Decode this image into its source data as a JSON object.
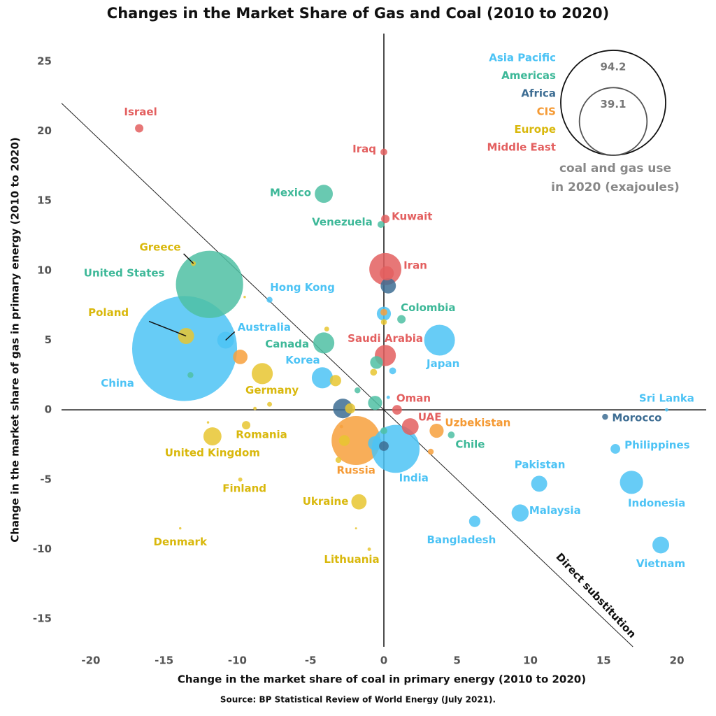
{
  "chart_data": {
    "type": "bubble",
    "title": "Changes in the Market Share of Gas and Coal (2010 to 2020)",
    "x_label": "Change in the market share of coal in primary energy (2010 to 2020)",
    "y_label": "Change in the market share of gas in primary energy (2010 to 2020)",
    "source": "Source: BP Statistical Review of World Energy (July 2021).",
    "annotation": "Direct substitution",
    "xlim": [
      -22,
      22
    ],
    "ylim": [
      -17,
      27
    ],
    "xticks": [
      -20,
      -15,
      -10,
      -5,
      0,
      5,
      10,
      15,
      20
    ],
    "yticks": [
      -15,
      -10,
      -5,
      0,
      5,
      10,
      15,
      20,
      25
    ],
    "size_legend": {
      "values": [
        94.2,
        39.1
      ],
      "title": [
        "coal and gas use",
        "in 2020 (exajoules)"
      ]
    },
    "series": [
      {
        "name": "Asia Pacific",
        "color": "#4cc3f5",
        "label_color": "#4cc3f5",
        "labels": [
          "China",
          "Japan",
          "Korea",
          "Australia",
          "Hong Kong",
          "India",
          "Pakistan",
          "Indonesia",
          "Malaysia",
          "Bangladesh",
          "Vietnam",
          "Philippines",
          "Sri Lanka",
          null,
          null,
          null,
          null
        ],
        "x": [
          -13.6,
          3.8,
          -4.2,
          -10.8,
          -7.8,
          0.8,
          10.6,
          16.9,
          9.3,
          6.2,
          18.9,
          15.8,
          19.3,
          0.0,
          0.6,
          0.3,
          -0.6
        ],
        "values": [
          4.4,
          5.0,
          2.3,
          5.0,
          7.9,
          -2.8,
          -5.3,
          -5.2,
          -7.4,
          -8.0,
          -9.7,
          -2.8,
          0.0,
          6.9,
          2.8,
          0.9,
          -2.4
        ],
        "sizes": [
          94.2,
          8.1,
          3.8,
          2.4,
          0.3,
          19.7,
          2.2,
          4.6,
          2.5,
          1.1,
          2.4,
          0.8,
          0.1,
          1.7,
          0.4,
          0.1,
          1.7
        ]
      },
      {
        "name": "Americas",
        "color": "#4fbfa3",
        "label_color": "#3db898",
        "labels": [
          "United States",
          "Mexico",
          "Venezuela",
          "Canada",
          "Colombia",
          "Chile",
          null,
          null,
          null,
          null,
          null
        ],
        "x": [
          -11.9,
          -4.1,
          -0.2,
          -4.1,
          1.2,
          4.6,
          -0.6,
          -0.5,
          0.0,
          -13.2,
          -1.8
        ],
        "values": [
          9.0,
          15.5,
          13.3,
          4.8,
          6.5,
          -1.8,
          0.5,
          3.4,
          -1.5,
          2.5,
          1.4
        ],
        "sizes": [
          38.7,
          2.8,
          0.4,
          3.8,
          0.6,
          0.4,
          1.7,
          1.4,
          0.4,
          0.3,
          0.3
        ]
      },
      {
        "name": "Africa",
        "color": "#3d6d93",
        "label_color": "#3d6d93",
        "labels": [
          "Morocco",
          null,
          null,
          null
        ],
        "x": [
          15.1,
          -2.8,
          0.3,
          0.0
        ],
        "values": [
          -0.5,
          0.1,
          8.9,
          -2.6
        ],
        "sizes": [
          0.3,
          3.3,
          2.0,
          0.8
        ]
      },
      {
        "name": "CIS",
        "color": "#f7a03c",
        "label_color": "#f59a34",
        "labels": [
          "Russia",
          "Uzbekistan",
          null,
          null,
          null,
          null
        ],
        "x": [
          -1.9,
          3.6,
          -9.8,
          3.2,
          0.0,
          -2.9
        ],
        "values": [
          -2.2,
          -1.5,
          3.8,
          -3.0,
          7.0,
          -1.2
        ],
        "sizes": [
          20.5,
          1.7,
          1.8,
          0.3,
          0.4,
          0.1
        ]
      },
      {
        "name": "Europe",
        "color": "#e8c530",
        "label_color": "#d9b80c",
        "labels": [
          "Greece",
          "Poland",
          "Germany",
          "Romania",
          "United Kingdom",
          "Finland",
          "Ukraine",
          "Denmark",
          "Lithuania",
          null,
          null,
          null,
          null,
          null,
          null,
          null,
          null,
          null,
          null,
          null,
          null
        ],
        "x": [
          -13,
          -13.5,
          -8.3,
          -9.4,
          -11.7,
          -9.8,
          -1.7,
          -13.9,
          -1.0,
          -2.7,
          -2.3,
          -3.1,
          -3.9,
          -3.3,
          -7.8,
          -8.8,
          -9.5,
          -0.7,
          0.0,
          -12.0,
          -1.9
        ],
        "values": [
          10.5,
          5.3,
          2.6,
          -1.1,
          -1.9,
          -5.0,
          -6.6,
          -8.5,
          -10.0,
          -2.2,
          0.1,
          -3.6,
          5.8,
          2.1,
          0.4,
          0.1,
          8.1,
          2.7,
          6.3,
          -0.9,
          -8.5
        ],
        "sizes": [
          0.2,
          2.2,
          3.8,
          0.6,
          2.8,
          0.15,
          2.0,
          0.05,
          0.1,
          1.0,
          0.9,
          0.3,
          0.2,
          1.1,
          0.2,
          0.1,
          0.05,
          0.4,
          0.3,
          0.05,
          0.03
        ]
      },
      {
        "name": "Middle East",
        "color": "#e35f5f",
        "label_color": "#e35f5f",
        "labels": [
          "Israel",
          "Iraq",
          "Kuwait",
          "Iran",
          "Saudi Arabia",
          "Oman",
          "UAE",
          null
        ],
        "x": [
          -16.7,
          0.0,
          0.1,
          0.1,
          0.1,
          0.9,
          1.8,
          0.2
        ],
        "values": [
          20.2,
          18.5,
          13.7,
          10.1,
          3.9,
          0.0,
          -1.2,
          9.8
        ],
        "sizes": [
          0.6,
          0.4,
          0.6,
          8.8,
          3.8,
          0.8,
          2.4,
          1.7
        ]
      }
    ]
  }
}
